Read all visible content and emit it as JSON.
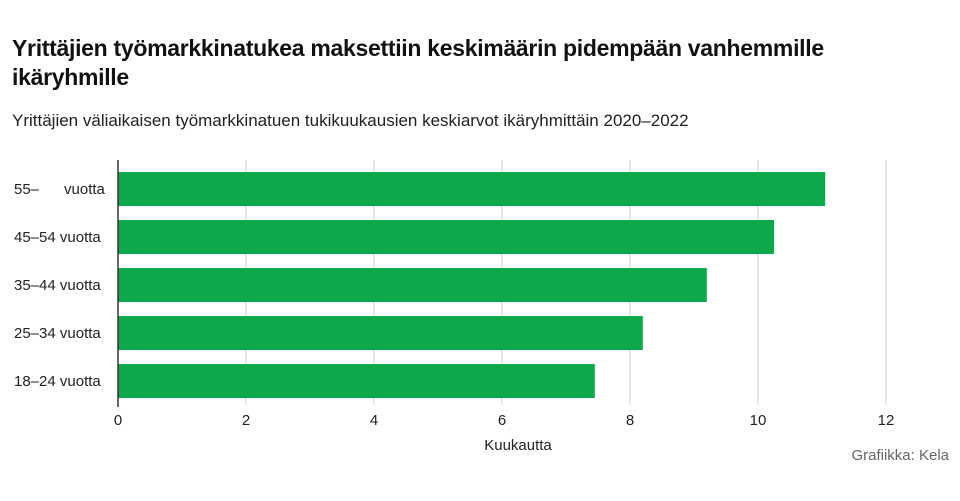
{
  "title": "Yrittäjien työmarkkinatukea maksettiin keskimäärin pidempään vanhemmille ikäryhmille",
  "subtitle": "Yrittäjien väliaikaisen työmarkkinatuen tukikuukausien keskiarvot ikäryhmittäin 2020–2022",
  "credit": "Grafiikka: Kela",
  "colors": {
    "bar": "#0ea84a",
    "grid": "#cfcfcf",
    "axis": "#333333",
    "text": "#222222"
  },
  "chart_data": {
    "type": "bar",
    "orientation": "horizontal",
    "categories": [
      "55–      vuotta",
      "45–54 vuotta",
      "35–44 vuotta",
      "25–34 vuotta",
      "18–24 vuotta"
    ],
    "values": [
      11.05,
      10.25,
      9.2,
      8.2,
      7.45
    ],
    "xlabel": "Kuukautta",
    "ylabel": "",
    "xlim": [
      0,
      12
    ],
    "xticks": [
      0,
      2,
      4,
      6,
      8,
      10,
      12
    ],
    "grid": true
  }
}
